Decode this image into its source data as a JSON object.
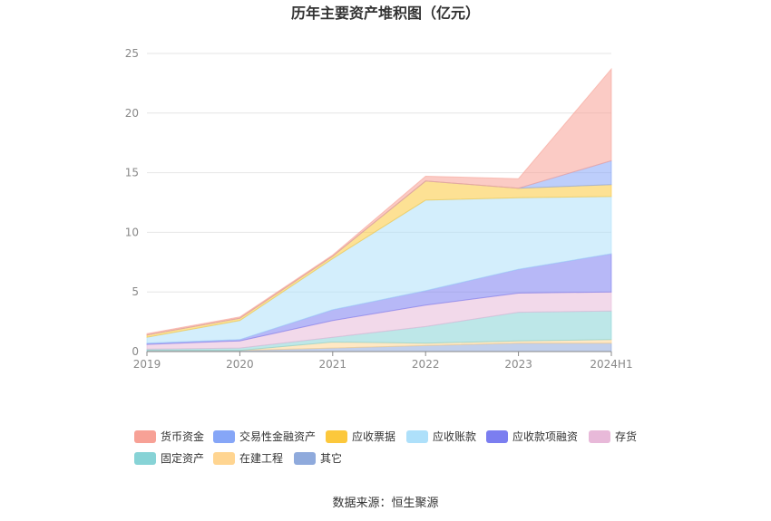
{
  "chart_data": {
    "type": "area",
    "stacked": true,
    "title": "历年主要资产堆积图（亿元）",
    "categories": [
      "2019",
      "2020",
      "2021",
      "2022",
      "2023",
      "2024H1"
    ],
    "ylim": [
      0,
      25
    ],
    "yticks": [
      0,
      5,
      10,
      15,
      20,
      25
    ],
    "grid": true,
    "legend_position": "bottom",
    "series": [
      {
        "name": "其它",
        "color": "#8faadc",
        "values": [
          0.1,
          0.1,
          0.3,
          0.5,
          0.7,
          0.7
        ]
      },
      {
        "name": "在建工程",
        "color": "#ffd591",
        "values": [
          0.0,
          0.0,
          0.5,
          0.2,
          0.2,
          0.3
        ]
      },
      {
        "name": "固定资产",
        "color": "#87d3d6",
        "values": [
          0.1,
          0.2,
          0.4,
          1.4,
          2.4,
          2.4
        ]
      },
      {
        "name": "存货",
        "color": "#e8b9d9",
        "values": [
          0.4,
          0.6,
          1.4,
          1.8,
          1.6,
          1.6
        ]
      },
      {
        "name": "应收款项融资",
        "color": "#7b7ef0",
        "values": [
          0.1,
          0.1,
          0.9,
          1.2,
          2.0,
          3.2
        ]
      },
      {
        "name": "应收账款",
        "color": "#aee0fa",
        "values": [
          0.5,
          1.6,
          4.3,
          7.6,
          6.0,
          4.8
        ]
      },
      {
        "name": "应收票据",
        "color": "#fcc83c",
        "values": [
          0.2,
          0.2,
          0.2,
          1.6,
          0.8,
          1.0
        ]
      },
      {
        "name": "交易性金融资产",
        "color": "#86a6f7",
        "values": [
          0.0,
          0.0,
          0.0,
          0.0,
          0.0,
          2.0
        ]
      },
      {
        "name": "货币资金",
        "color": "#f7a196",
        "values": [
          0.1,
          0.1,
          0.1,
          0.4,
          0.8,
          7.7
        ]
      }
    ],
    "legend_order": [
      "货币资金",
      "交易性金融资产",
      "应收票据",
      "应收账款",
      "应收款项融资",
      "存货",
      "固定资产",
      "在建工程",
      "其它"
    ]
  },
  "source_text": "数据来源：恒生聚源"
}
